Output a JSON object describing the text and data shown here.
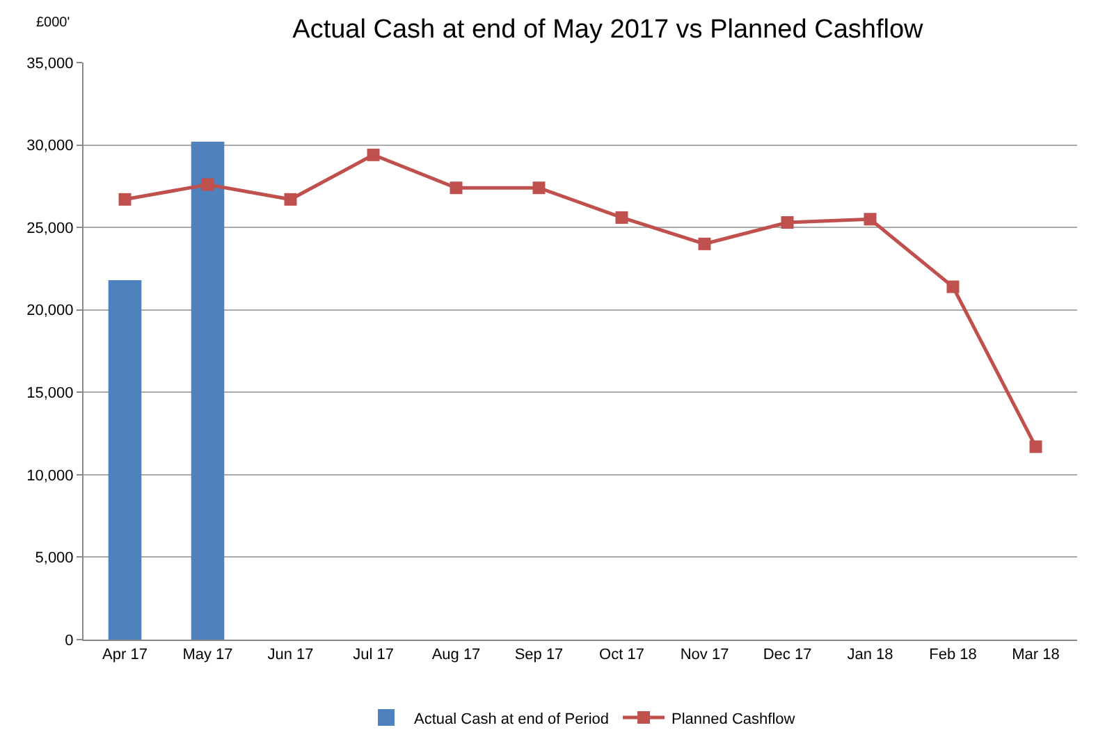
{
  "chart_data": {
    "type": "bar",
    "title": "Actual Cash at end of May 2017 vs Planned Cashflow",
    "ylabel": "£000'",
    "categories": [
      "Apr 17",
      "May 17",
      "Jun 17",
      "Jul 17",
      "Aug 17",
      "Sep 17",
      "Oct 17",
      "Nov 17",
      "Dec 17",
      "Jan 18",
      "Feb 18",
      "Mar 18"
    ],
    "series": [
      {
        "name": "Actual Cash at end of Period",
        "color": "#4f81bd",
        "values": [
          21800,
          30200,
          null,
          null,
          null,
          null,
          null,
          null,
          null,
          null,
          null,
          null
        ]
      },
      {
        "name": "Planned Cashflow",
        "type": "line",
        "color": "#c0504d",
        "marker": "square",
        "values": [
          26700,
          27600,
          26700,
          29400,
          27400,
          27400,
          25600,
          24000,
          25300,
          25500,
          21400,
          11700
        ]
      }
    ],
    "ylim": [
      0,
      35000
    ],
    "yticks": [
      {
        "value": 0,
        "label": "0"
      },
      {
        "value": 5000,
        "label": "5,000"
      },
      {
        "value": 10000,
        "label": "10,000"
      },
      {
        "value": 15000,
        "label": "15,000"
      },
      {
        "value": 20000,
        "label": "20,000"
      },
      {
        "value": 25000,
        "label": "25,000"
      },
      {
        "value": 30000,
        "label": "30,000"
      },
      {
        "value": 35000,
        "label": "35,000"
      }
    ],
    "grid": "y",
    "legend": "bottom"
  }
}
